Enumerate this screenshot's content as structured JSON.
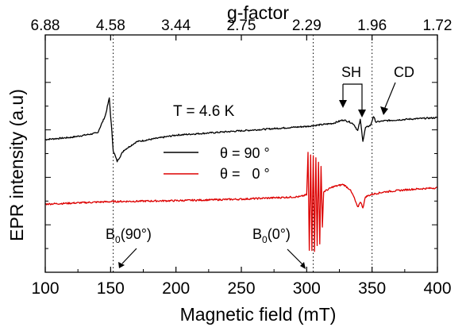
{
  "chart_data": {
    "type": "line",
    "xlabel": "Magnetic field (mT)",
    "ylabel": "EPR intensity (a.u)",
    "top_axis_label": "g-factor",
    "xlim": [
      100,
      400
    ],
    "x_ticks": [
      100,
      150,
      200,
      250,
      300,
      350,
      400
    ],
    "top_ticks": [
      {
        "label": "6.88",
        "field_mT": 100
      },
      {
        "label": "4.58",
        "field_mT": 150
      },
      {
        "label": "3.44",
        "field_mT": 200
      },
      {
        "label": "2.75",
        "field_mT": 250
      },
      {
        "label": "2.29",
        "field_mT": 300
      },
      {
        "label": "1.96",
        "field_mT": 350
      },
      {
        "label": "1.72",
        "field_mT": 400
      }
    ],
    "y_ticks_labeled": false,
    "grid": false,
    "legend_position": "center",
    "series": [
      {
        "name": "θ = 90 °",
        "color": "#000000",
        "x": [
          100,
          120,
          140,
          146,
          149,
          152,
          155,
          160,
          170,
          200,
          250,
          300,
          320,
          328,
          333,
          336,
          339,
          341,
          343,
          345,
          347,
          349,
          351,
          353,
          360,
          380,
          400
        ],
        "y": [
          -0.05,
          0,
          0.1,
          0.5,
          0.9,
          -0.3,
          -0.55,
          -0.3,
          -0.1,
          0.05,
          0.15,
          0.25,
          0.32,
          0.4,
          0.35,
          0.3,
          0.15,
          0.4,
          -0.08,
          0.22,
          0.25,
          0.28,
          0.48,
          0.35,
          0.38,
          0.42,
          0.45
        ]
      },
      {
        "name": "θ =   0 °",
        "color": "#dd0000",
        "x": [
          100,
          150,
          200,
          250,
          295,
          300,
          301,
          302,
          303,
          304,
          305,
          306,
          307,
          308,
          309,
          310,
          311,
          312,
          313,
          320,
          328,
          333,
          336,
          339,
          341,
          343,
          345,
          350,
          360,
          380,
          400
        ],
        "y": [
          -0.05,
          0.0,
          0.02,
          0.05,
          0.1,
          0.14,
          1.0,
          -1.0,
          0.95,
          -0.98,
          0.95,
          -1.0,
          0.9,
          -0.9,
          0.8,
          -0.85,
          0.7,
          -0.5,
          0.2,
          0.3,
          0.35,
          0.25,
          0.1,
          -0.12,
          0.0,
          -0.12,
          0.1,
          0.15,
          0.2,
          0.25,
          0.28
        ]
      }
    ],
    "reference_lines_mT": [
      152,
      305,
      350
    ],
    "annotations": {
      "temperature": "T  = 4.6 K",
      "sh": "SH",
      "cd": "CD",
      "b0_90_main": "B",
      "b0_90_sub": "0",
      "b0_90_rest": "(90°)",
      "b0_0_main": "B",
      "b0_0_sub": "0",
      "b0_0_rest": "(0°)"
    }
  }
}
